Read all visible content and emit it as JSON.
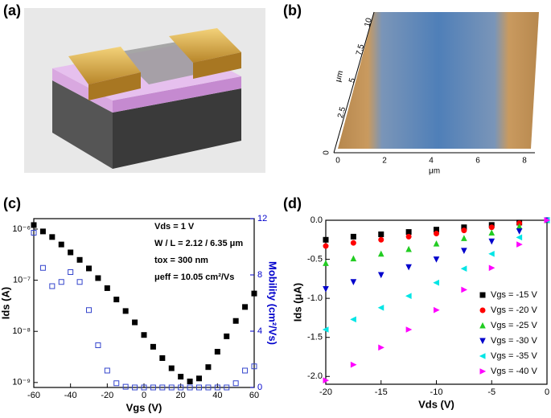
{
  "panel_labels": [
    "(a)",
    "(b)",
    "(c)",
    "(d)"
  ],
  "afm": {
    "x_ticks": [
      "0",
      "2",
      "4",
      "6",
      "8"
    ],
    "x_unit": "μm",
    "y_ticks": [
      "2.5",
      "5",
      "7.5",
      "10"
    ],
    "y_unit": "μm",
    "corner": "0"
  },
  "chart_data": [
    {
      "type": "line",
      "log_y": true,
      "x_label": "Vgs (V)",
      "y_label": "Ids (A)",
      "y2_label": "Mobility (cm²/Vs)",
      "y2_color": "#0000cc",
      "annotations": [
        "Vds = 1 V",
        "W / L = 2.12 / 6.35 μm",
        "tox = 300 nm",
        "μeff = 10.05 cm²/Vs"
      ],
      "x": [
        -60,
        -55,
        -50,
        -45,
        -40,
        -35,
        -30,
        -25,
        -20,
        -15,
        -10,
        -5,
        0,
        5,
        10,
        15,
        20,
        25,
        30,
        35,
        40,
        45,
        50,
        55,
        60
      ],
      "series": [
        {
          "name": "Ids",
          "color": "#000000",
          "marker": "square",
          "filled": true,
          "values": [
            1.2e-06,
            9e-07,
            7e-07,
            5e-07,
            3.5e-07,
            2.5e-07,
            1.7e-07,
            1.1e-07,
            7e-08,
            4.2e-08,
            2.5e-08,
            1.5e-08,
            8.5e-09,
            5e-09,
            3e-09,
            1.9e-09,
            1.3e-09,
            1.05e-09,
            1.2e-09,
            2e-09,
            4e-09,
            8e-09,
            1.6e-08,
            3e-08,
            5.5e-08
          ]
        },
        {
          "name": "Mobility",
          "color": "#3344cc",
          "marker": "square",
          "filled": false,
          "axis": "y2",
          "values": [
            11,
            8.5,
            7.2,
            7.5,
            8.2,
            7.5,
            5.5,
            3,
            1.2,
            0.3,
            0.05,
            0,
            0,
            0,
            0,
            0,
            0,
            0,
            0,
            0,
            0,
            0,
            0.3,
            1.2,
            1.5
          ]
        }
      ],
      "xlim": [
        -60,
        60
      ],
      "xticks": [
        -60,
        -40,
        -20,
        0,
        20,
        40,
        60
      ],
      "ylim": [
        8e-10,
        1.6e-06
      ],
      "yticks": [
        {
          "value": 1e-09,
          "label": "10⁻⁹"
        },
        {
          "value": 1e-08,
          "label": "10⁻⁸"
        },
        {
          "value": 1e-07,
          "label": "10⁻⁷"
        },
        {
          "value": 1e-06,
          "label": "10⁻⁶"
        }
      ],
      "y2lim": [
        0,
        12
      ],
      "y2ticks": [
        0,
        4,
        8,
        12
      ]
    },
    {
      "type": "line",
      "log_y": false,
      "x_label": "Vds (V)",
      "y_label": "Ids (μA)",
      "legend": "lower right",
      "x": [
        -20,
        -17.5,
        -15,
        -12.5,
        -10,
        -7.5,
        -5,
        -2.5,
        0
      ],
      "series": [
        {
          "name": "Vgs = -15 V",
          "color": "#000000",
          "marker": "square",
          "filled": true,
          "values": [
            -0.25,
            -0.21,
            -0.18,
            -0.15,
            -0.12,
            -0.09,
            -0.06,
            -0.03,
            0
          ]
        },
        {
          "name": "Vgs = -20 V",
          "color": "#ff0000",
          "marker": "circle",
          "filled": true,
          "values": [
            -0.33,
            -0.29,
            -0.25,
            -0.21,
            -0.17,
            -0.13,
            -0.09,
            -0.04,
            0
          ]
        },
        {
          "name": "Vgs = -25 V",
          "color": "#22cc22",
          "marker": "triangle-up",
          "filled": true,
          "values": [
            -0.55,
            -0.49,
            -0.43,
            -0.37,
            -0.3,
            -0.23,
            -0.16,
            -0.08,
            0
          ]
        },
        {
          "name": "Vgs = -30 V",
          "color": "#0000cc",
          "marker": "triangle-down",
          "filled": true,
          "values": [
            -0.88,
            -0.79,
            -0.7,
            -0.6,
            -0.5,
            -0.39,
            -0.27,
            -0.14,
            0
          ]
        },
        {
          "name": "Vgs = -35 V",
          "color": "#00e5e5",
          "marker": "triangle-left",
          "filled": true,
          "values": [
            -1.4,
            -1.27,
            -1.12,
            -0.97,
            -0.8,
            -0.62,
            -0.43,
            -0.22,
            0
          ]
        },
        {
          "name": "Vgs = -40 V",
          "color": "#ff00ff",
          "marker": "triangle-right",
          "filled": true,
          "values": [
            -2.05,
            -1.85,
            -1.63,
            -1.4,
            -1.15,
            -0.89,
            -0.61,
            -0.31,
            0
          ]
        }
      ],
      "xlim": [
        -20,
        0
      ],
      "xticks": [
        -20,
        -15,
        -10,
        -5,
        0
      ],
      "ylim": [
        -2.1,
        0
      ],
      "yticks": [
        {
          "value": 0,
          "label": "0.0"
        },
        {
          "value": -0.5,
          "label": "-0.5"
        },
        {
          "value": -1,
          "label": "-1.0"
        },
        {
          "value": -1.5,
          "label": "-1.5"
        },
        {
          "value": -2,
          "label": "-2.0"
        }
      ]
    }
  ]
}
